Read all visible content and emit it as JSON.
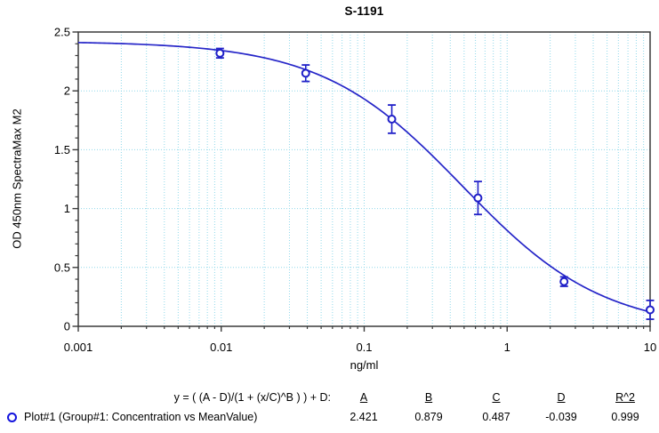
{
  "chart_data": {
    "type": "scatter",
    "title": "S-1191",
    "xlabel": "ng/ml",
    "ylabel": "OD 450nm SpectraMax M2",
    "x_scale": "log",
    "xlim": [
      0.001,
      10
    ],
    "ylim": [
      0,
      2.5
    ],
    "x_major_ticks": [
      {
        "v": 0.001,
        "label": "0.001"
      },
      {
        "v": 0.01,
        "label": "0.01"
      },
      {
        "v": 0.1,
        "label": "0.1"
      },
      {
        "v": 1,
        "label": "1"
      },
      {
        "v": 10,
        "label": "10"
      }
    ],
    "y_major_ticks": [
      {
        "v": 0,
        "label": "0"
      },
      {
        "v": 0.5,
        "label": "0.5"
      },
      {
        "v": 1,
        "label": "1"
      },
      {
        "v": 1.5,
        "label": "1.5"
      },
      {
        "v": 2,
        "label": "2"
      },
      {
        "v": 2.5,
        "label": "2.5"
      }
    ],
    "y_minor_step": 0.1,
    "grid_horizontal_at": [
      0.5,
      1,
      1.5,
      2
    ],
    "series": [
      {
        "name": "Plot#1 (Group#1: Concentration vs MeanValue)",
        "marker": "open-circle",
        "points": [
          {
            "x": 0.0098,
            "y": 2.32,
            "err": 0.04
          },
          {
            "x": 0.039,
            "y": 2.15,
            "err": 0.07
          },
          {
            "x": 0.156,
            "y": 1.76,
            "err": 0.12
          },
          {
            "x": 0.625,
            "y": 1.09,
            "err": 0.14
          },
          {
            "x": 2.5,
            "y": 0.38,
            "err": 0.04
          },
          {
            "x": 10,
            "y": 0.14,
            "err": 0.08
          }
        ]
      }
    ],
    "fit": {
      "model": "4PL",
      "equation": "y = ( (A - D)/(1 + (x/C)^B ) ) + D:",
      "A": 2.421,
      "B": 0.879,
      "C": 0.487,
      "D": -0.039,
      "R2": 0.999
    },
    "legend": {
      "headers": [
        "A",
        "B",
        "C",
        "D",
        "R^2"
      ],
      "rows": [
        {
          "label": "Plot#1 (Group#1: Concentration vs MeanValue)",
          "values": [
            "2.421",
            "0.879",
            "0.487",
            "-0.039",
            "0.999"
          ]
        }
      ]
    },
    "colors": {
      "curve": "#2525c8",
      "marker": "#2020c8",
      "legend_marker": "#1313dd",
      "grid": "#8fd8ea",
      "axis": "#3a3a3a",
      "text": "#000000"
    }
  }
}
